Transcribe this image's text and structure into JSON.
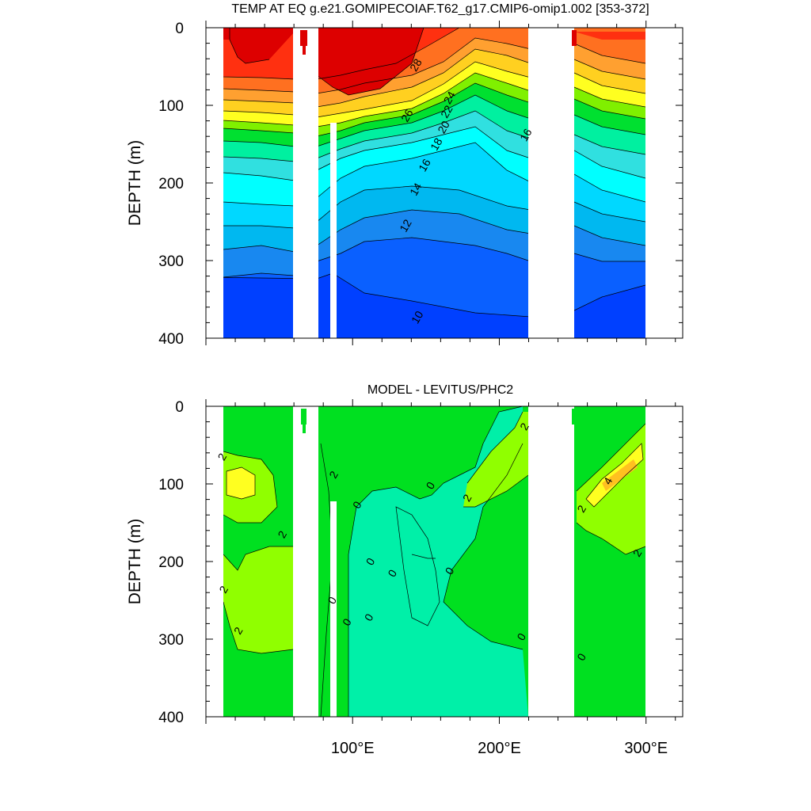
{
  "chart_data": [
    {
      "type": "heatmap",
      "title": "TEMP AT EQ g.e21.GOMIPECOIAF.T62_g17.CMIP6-omip1.002 [353-372]",
      "ylabel": "DEPTH (m)",
      "xlim": [
        0,
        325
      ],
      "ylim": [
        400,
        0
      ],
      "yticks": [
        "0",
        "100",
        "200",
        "300",
        "400"
      ],
      "ytick_values": [
        0,
        100,
        200,
        300,
        400
      ],
      "xticks": [],
      "contour_labels": [
        {
          "text": "28",
          "x": 143,
          "y": 48
        },
        {
          "text": "26",
          "x": 137,
          "y": 113
        },
        {
          "text": "24",
          "x": 166,
          "y": 90
        },
        {
          "text": "22",
          "x": 164,
          "y": 108
        },
        {
          "text": "20",
          "x": 162,
          "y": 128
        },
        {
          "text": "18",
          "x": 157,
          "y": 150
        },
        {
          "text": "16",
          "x": 149,
          "y": 177
        },
        {
          "text": "16",
          "x": 218,
          "y": 138
        },
        {
          "text": "14",
          "x": 143,
          "y": 208
        },
        {
          "text": "12",
          "x": 136,
          "y": 255
        },
        {
          "text": "10",
          "x": 144,
          "y": 373
        }
      ],
      "colors": {
        "warm": "#dd0000",
        "mid": "#f0a020",
        "cool": "#1888f0"
      }
    },
    {
      "type": "heatmap",
      "title": "MODEL - LEVITUS/PHC2",
      "ylabel": "DEPTH (m)",
      "xlim": [
        0,
        325
      ],
      "ylim": [
        400,
        0
      ],
      "yticks": [
        "0",
        "100",
        "200",
        "300",
        "400"
      ],
      "ytick_values": [
        0,
        100,
        200,
        300,
        400
      ],
      "xticks": [
        "100°E",
        "200°E",
        "300°E"
      ],
      "xtick_values": [
        100,
        200,
        300
      ],
      "contour_labels": [
        {
          "text": "2",
          "x": 11,
          "y": 65
        },
        {
          "text": "2",
          "x": 52,
          "y": 165
        },
        {
          "text": "2",
          "x": 12,
          "y": 236
        },
        {
          "text": "2",
          "x": 22,
          "y": 289
        },
        {
          "text": "2",
          "x": 87,
          "y": 88
        },
        {
          "text": "0",
          "x": 103,
          "y": 127
        },
        {
          "text": "0",
          "x": 153,
          "y": 102
        },
        {
          "text": "2",
          "x": 178,
          "y": 118
        },
        {
          "text": "2",
          "x": 217,
          "y": 26
        },
        {
          "text": "0",
          "x": 112,
          "y": 200
        },
        {
          "text": "0",
          "x": 127,
          "y": 215
        },
        {
          "text": "0",
          "x": 166,
          "y": 212
        },
        {
          "text": "0",
          "x": 86,
          "y": 250
        },
        {
          "text": "0",
          "x": 96,
          "y": 278
        },
        {
          "text": "0",
          "x": 111,
          "y": 272
        },
        {
          "text": "0",
          "x": 215,
          "y": 297
        },
        {
          "text": "2",
          "x": 256,
          "y": 132
        },
        {
          "text": "4",
          "x": 274,
          "y": 96
        },
        {
          "text": "2",
          "x": 294,
          "y": 189
        },
        {
          "text": "0",
          "x": 256,
          "y": 323
        }
      ],
      "colors": {
        "zero": "#00f0a8",
        "pos2": "#00e020",
        "pos3": "#90ff00",
        "pos4": "#ffff20",
        "pos6": "#ffc020"
      }
    }
  ]
}
